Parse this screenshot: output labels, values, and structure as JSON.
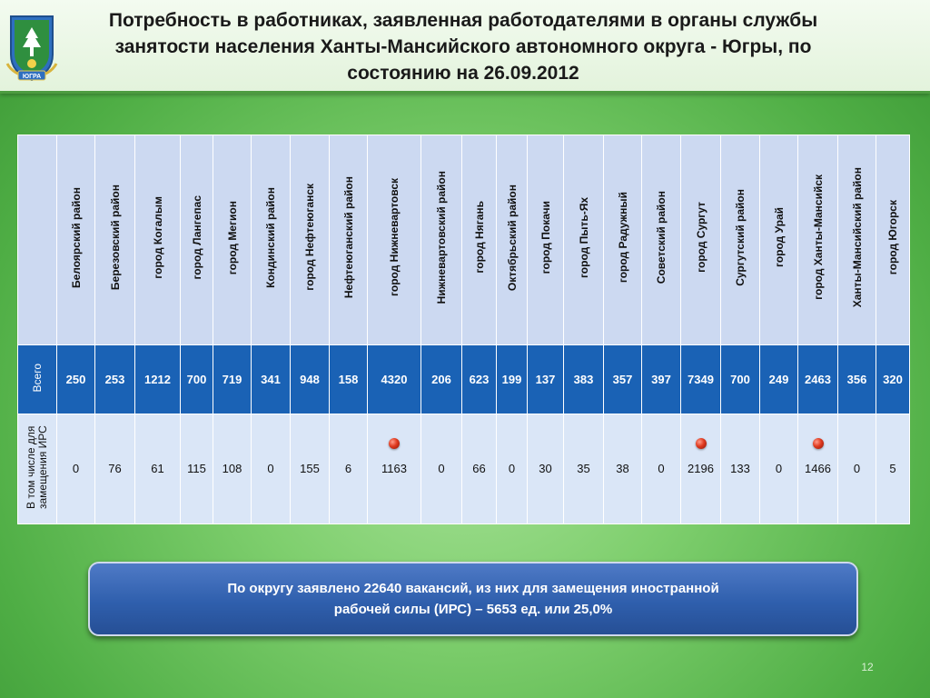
{
  "title": {
    "line1": "Потребность в работниках, заявленная работодателями в органы службы",
    "line2": "занятости населения  Ханты-Мансийского автономного округа - Югры, по",
    "line3": "состоянию на 26.09.2012"
  },
  "emblem": {
    "icon": "emblem-icon",
    "text": "ЮГРА"
  },
  "table": {
    "columns": [
      "Белоярский район",
      "Березовский район",
      "город Когалым",
      "город Лангепас",
      "город Мегион",
      "Кондинский район",
      "город Нефтеюганск",
      "Нефтеюганский район",
      "город Нижневартовск",
      "Нижневартовский район",
      "город Нягань",
      "Октябрьский район",
      "город Покачи",
      "город Пыть-Ях",
      "город Радужный",
      "Советский район",
      "город Сургут",
      "Сургутский район",
      "город Урай",
      "город Ханты-Мансийск",
      "Ханты-Мансийский район",
      "город Югорск"
    ],
    "rows": [
      {
        "label": "Всего",
        "values": [
          "250",
          "253",
          "1212",
          "700",
          "719",
          "341",
          "948",
          "158",
          "4320",
          "206",
          "623",
          "199",
          "137",
          "383",
          "357",
          "397",
          "7349",
          "700",
          "249",
          "2463",
          "356",
          "320"
        ]
      },
      {
        "label": "В том числе для замещения ИРС",
        "values": [
          "0",
          "76",
          "61",
          "115",
          "108",
          "0",
          "155",
          "6",
          "1163",
          "0",
          "66",
          "0",
          "30",
          "35",
          "38",
          "0",
          "2196",
          "133",
          "0",
          "1466",
          "0",
          "5"
        ]
      }
    ],
    "highlight_color": "#e03a1f"
  },
  "summary": {
    "line1": "По округу заявлено  22640  вакансий,  из них для замещения иностранной",
    "line2": "рабочей силы (ИРС) – 5653 ед. или  25,0%"
  },
  "page_number": "12"
}
